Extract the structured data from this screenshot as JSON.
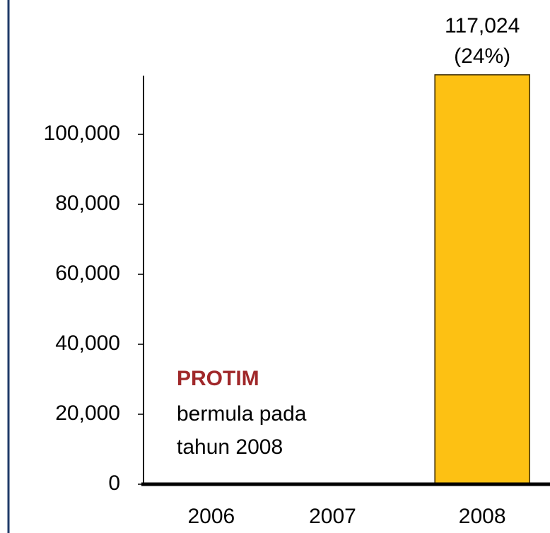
{
  "chart_data": {
    "type": "bar",
    "categories": [
      "2006",
      "2007",
      "2008"
    ],
    "values": [
      null,
      null,
      117024
    ],
    "value_labels": [
      null,
      null,
      "117,024"
    ],
    "annotations": [
      "(24%)"
    ],
    "note": {
      "title": "PROTIM",
      "lines": [
        "bermula pada",
        "tahun  2008"
      ]
    },
    "color": "#fdc113",
    "ylim": [
      0,
      118000
    ],
    "yticks": [
      0,
      {
        "value": 20000,
        "label": "20,000"
      },
      {
        "value": 40000,
        "label": "40,000"
      },
      {
        "value": 60000,
        "label": "60,000"
      },
      {
        "value": 80000,
        "label": "80,000"
      },
      {
        "value": 100000,
        "label": "100,000"
      }
    ]
  }
}
